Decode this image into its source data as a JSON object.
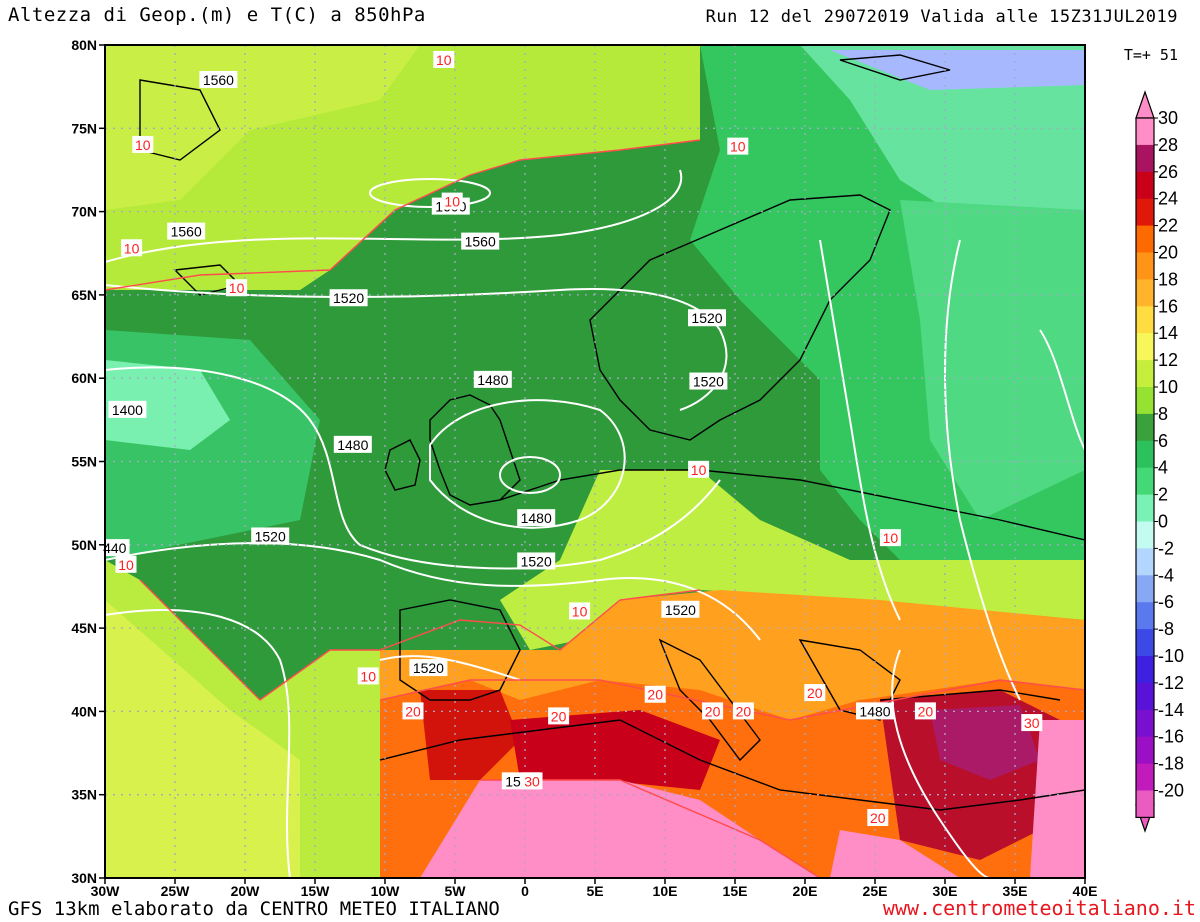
{
  "header": {
    "title": "Altezza di Geop.(m) e T(C) a 850hPa",
    "run": "Run 12 del 29072019 Valida alle 15Z31JUL2019",
    "step": "T=+ 51"
  },
  "footer": {
    "model": "GFS 13km elaborato da CENTRO METEO ITALIANO",
    "website": "www.centrometeoitaliano.it"
  },
  "map": {
    "lat_labels": [
      "80N",
      "75N",
      "70N",
      "65N",
      "60N",
      "55N",
      "50N",
      "45N",
      "40N",
      "35N",
      "30N"
    ],
    "lon_labels": [
      "30W",
      "25W",
      "20W",
      "15W",
      "10W",
      "5W",
      "0",
      "5E",
      "10E",
      "15E",
      "20E",
      "25E",
      "30E",
      "35E",
      "40E"
    ],
    "geopotential_labels": [
      {
        "text": "1560",
        "lon": -21.9,
        "lat": 77.9
      },
      {
        "text": "1600",
        "lon": -5.3,
        "lat": 70.3
      },
      {
        "text": "1560",
        "lon": -24.2,
        "lat": 68.8
      },
      {
        "text": "1560",
        "lon": -3.2,
        "lat": 68.2
      },
      {
        "text": "1520",
        "lon": -12.6,
        "lat": 64.8
      },
      {
        "text": "1520",
        "lon": 13.0,
        "lat": 63.6
      },
      {
        "text": "1520",
        "lon": 13.1,
        "lat": 59.8
      },
      {
        "text": "1480",
        "lon": -2.3,
        "lat": 59.9
      },
      {
        "text": "1400",
        "lon": -28.4,
        "lat": 58.1
      },
      {
        "text": "1480",
        "lon": -12.3,
        "lat": 56.0
      },
      {
        "text": "1480",
        "lon": 0.8,
        "lat": 51.6
      },
      {
        "text": "1520",
        "lon": -18.2,
        "lat": 50.5
      },
      {
        "text": "1520",
        "lon": 0.8,
        "lat": 49.0
      },
      {
        "text": "440",
        "lon": -29.3,
        "lat": 49.8
      },
      {
        "text": "1520",
        "lon": 11.1,
        "lat": 46.1
      },
      {
        "text": "1520",
        "lon": -6.9,
        "lat": 42.6
      },
      {
        "text": "1480",
        "lon": 25.0,
        "lat": 40.0
      },
      {
        "text": "1520",
        "lon": -0.3,
        "lat": 35.8
      }
    ],
    "temperature_labels": [
      {
        "text": "10",
        "lon": -5.8,
        "lat": 79.1
      },
      {
        "text": "10",
        "lon": 15.2,
        "lat": 73.9
      },
      {
        "text": "10",
        "lon": -27.3,
        "lat": 74.0
      },
      {
        "text": "10",
        "lon": -5.2,
        "lat": 70.6
      },
      {
        "text": "10",
        "lon": -28.1,
        "lat": 67.8
      },
      {
        "text": "10",
        "lon": -20.6,
        "lat": 65.4
      },
      {
        "text": "10",
        "lon": 12.4,
        "lat": 54.5
      },
      {
        "text": "10",
        "lon": 26.1,
        "lat": 50.4
      },
      {
        "text": "10",
        "lon": -28.5,
        "lat": 48.8
      },
      {
        "text": "10",
        "lon": 3.9,
        "lat": 46.0
      },
      {
        "text": "10",
        "lon": -11.2,
        "lat": 42.1
      },
      {
        "text": "20",
        "lon": -8.0,
        "lat": 40.0
      },
      {
        "text": "20",
        "lon": 2.4,
        "lat": 39.7
      },
      {
        "text": "20",
        "lon": 9.3,
        "lat": 41.0
      },
      {
        "text": "20",
        "lon": 13.4,
        "lat": 40.0
      },
      {
        "text": "20",
        "lon": 15.6,
        "lat": 40.0
      },
      {
        "text": "20",
        "lon": 20.7,
        "lat": 41.1
      },
      {
        "text": "20",
        "lon": 28.6,
        "lat": 40.0
      },
      {
        "text": "30",
        "lon": 0.5,
        "lat": 35.8
      },
      {
        "text": "30",
        "lon": 36.2,
        "lat": 39.3
      },
      {
        "text": "20",
        "lon": 25.2,
        "lat": 33.6
      }
    ]
  },
  "colorbar": {
    "labels": [
      "30",
      "28",
      "26",
      "24",
      "22",
      "20",
      "18",
      "16",
      "14",
      "12",
      "10",
      "8",
      "6",
      "4",
      "2",
      "0",
      "-2",
      "-4",
      "-6",
      "-8",
      "-10",
      "-12",
      "-14",
      "-16",
      "-18",
      "-20"
    ],
    "colors": [
      "#ff8ec8",
      "#a8145f",
      "#c90018",
      "#e0180a",
      "#ff6a00",
      "#ff9416",
      "#ffb42c",
      "#ffdc40",
      "#f7f75c",
      "#c6ee3c",
      "#96e232",
      "#39a23a",
      "#2cc15d",
      "#45d877",
      "#7af2b6",
      "#c4fbf0",
      "#b3d6ff",
      "#86a8f5",
      "#5a79ef",
      "#3d49e6",
      "#3d20e0",
      "#5812d8",
      "#7a10cf",
      "#9b0fc5",
      "#c21bbb",
      "#ea5cc0"
    ]
  }
}
